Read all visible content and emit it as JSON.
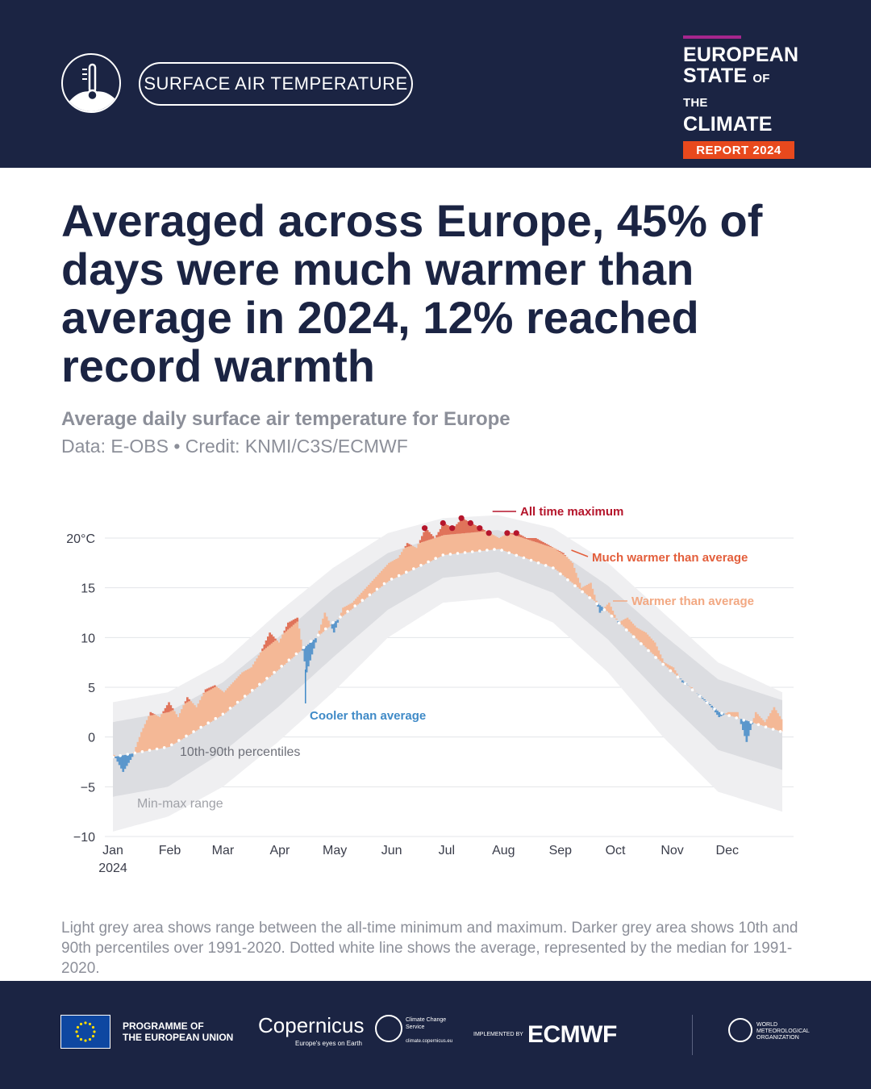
{
  "header": {
    "topic": "SURFACE AIR TEMPERATURE",
    "report_line1": "EUROPEAN",
    "report_line2a": "STATE",
    "report_line2b": "OF THE",
    "report_line3": "CLIMATE",
    "report_badge": "REPORT 2024"
  },
  "headline": "Averaged across Europe, 45% of days were much warmer than average in 2024, 12% reached record warmth",
  "subtitle": "Average daily surface air temperature for Europe",
  "credit": "Data: E-OBS • Credit: KNMI/C3S/ECMWF",
  "chart_data": {
    "type": "area",
    "title": "Average daily surface air temperature for Europe",
    "ylabel": "°C",
    "xlabel": "",
    "ylim": [
      -10,
      22
    ],
    "yticks": [
      {
        "value": 20,
        "label": "20°C"
      },
      {
        "value": 15,
        "label": "15"
      },
      {
        "value": 10,
        "label": "10"
      },
      {
        "value": 5,
        "label": "5"
      },
      {
        "value": 0,
        "label": "0"
      },
      {
        "value": -5,
        "label": "−5"
      },
      {
        "value": -10,
        "label": "−10"
      }
    ],
    "months": [
      "Jan",
      "Feb",
      "Mar",
      "Apr",
      "May",
      "Jun",
      "Jul",
      "Aug",
      "Sep",
      "Oct",
      "Nov",
      "Dec"
    ],
    "year_label": "2024",
    "series": [
      {
        "name": "Average (median 1991-2020)",
        "days": [
          0,
          30,
          60,
          90,
          120,
          150,
          180,
          210,
          240,
          270,
          300,
          330,
          365
        ],
        "values": [
          -2.0,
          -1.0,
          2.3,
          6.8,
          11.5,
          15.7,
          18.3,
          18.9,
          17.0,
          12.5,
          7.3,
          2.5,
          0.5
        ]
      },
      {
        "name": "10th percentile",
        "days": [
          0,
          30,
          60,
          90,
          120,
          150,
          180,
          210,
          240,
          270,
          300,
          330,
          365
        ],
        "values": [
          -6.0,
          -5.0,
          -1.5,
          3.0,
          8.0,
          12.8,
          16.0,
          16.6,
          14.5,
          9.8,
          4.0,
          -1.3,
          -3.3
        ]
      },
      {
        "name": "90th percentile",
        "days": [
          0,
          30,
          60,
          90,
          120,
          150,
          180,
          210,
          240,
          270,
          300,
          330,
          365
        ],
        "values": [
          1.5,
          2.5,
          5.5,
          10.0,
          14.8,
          18.5,
          20.3,
          20.8,
          19.0,
          15.2,
          10.3,
          5.8,
          3.7
        ]
      },
      {
        "name": "All-time minimum",
        "days": [
          0,
          30,
          60,
          90,
          120,
          150,
          180,
          210,
          240,
          270,
          300,
          330,
          365
        ],
        "values": [
          -9.5,
          -8.0,
          -5.0,
          -0.5,
          4.5,
          10.0,
          13.5,
          14.0,
          11.5,
          6.5,
          0.0,
          -5.5,
          -7.5
        ]
      },
      {
        "name": "All-time maximum",
        "days": [
          0,
          30,
          60,
          90,
          120,
          150,
          180,
          210,
          240,
          270,
          300,
          330,
          365
        ],
        "values": [
          3.5,
          4.5,
          7.5,
          12.5,
          17.0,
          20.5,
          22.0,
          22.3,
          21.0,
          17.5,
          12.5,
          7.5,
          4.5
        ]
      },
      {
        "name": "2024",
        "days": [
          0,
          5,
          10,
          15,
          20,
          25,
          30,
          35,
          40,
          45,
          50,
          55,
          60,
          65,
          70,
          75,
          80,
          85,
          90,
          95,
          100,
          105,
          110,
          115,
          120,
          125,
          130,
          135,
          140,
          145,
          150,
          155,
          160,
          165,
          170,
          175,
          180,
          185,
          190,
          195,
          200,
          205,
          210,
          215,
          220,
          225,
          230,
          235,
          240,
          245,
          250,
          255,
          260,
          265,
          270,
          275,
          280,
          285,
          290,
          295,
          300,
          305,
          310,
          315,
          320,
          325,
          330,
          335,
          340,
          345,
          350,
          355,
          360,
          365
        ],
        "values": [
          -1.8,
          -3.5,
          -2.0,
          0.5,
          2.5,
          2.0,
          3.5,
          2.0,
          4.0,
          3.0,
          4.8,
          5.2,
          4.5,
          5.5,
          6.5,
          7.0,
          8.5,
          10.5,
          9.5,
          11.5,
          12.0,
          6.5,
          9.5,
          12.5,
          10.5,
          13.0,
          13.5,
          14.5,
          15.5,
          16.5,
          17.5,
          18.0,
          19.5,
          19.0,
          21.0,
          20.0,
          21.5,
          21.0,
          22.0,
          21.5,
          21.0,
          20.5,
          20.0,
          20.5,
          20.5,
          20.0,
          20.0,
          19.5,
          19.0,
          18.5,
          17.5,
          15.0,
          15.5,
          12.5,
          13.5,
          11.5,
          12.0,
          11.0,
          10.5,
          9.5,
          7.5,
          7.0,
          5.5,
          5.0,
          4.0,
          3.2,
          2.0,
          2.5,
          2.5,
          -0.5,
          2.5,
          1.5,
          3.0,
          1.5
        ]
      }
    ],
    "annotations": [
      {
        "label": "All time maximum",
        "color": "#b5152b"
      },
      {
        "label": "Much warmer than average",
        "color": "#e35e3b"
      },
      {
        "label": "Warmer than average",
        "color": "#f2a882"
      },
      {
        "label": "Cooler than average",
        "color": "#3f8ac7"
      },
      {
        "label": "10th-90th percentiles",
        "color": "#6e7079"
      },
      {
        "label": "Min-max range",
        "color": "#a0a2a8"
      }
    ]
  },
  "footnote": "Light grey area shows range between the all-time minimum and maximum. Darker grey area shows 10th and 90th percentiles over 1991-2020. Dotted white line shows the average, represented by the median for 1991-2020.",
  "footer": {
    "eu_text_1": "PROGRAMME OF",
    "eu_text_2": "THE EUROPEAN UNION",
    "copernicus": "Copernicus",
    "copernicus_tag": "Europe's eyes on Earth",
    "c3s_name": "Climate Change Service",
    "c3s_url": "climate.copernicus.eu",
    "implemented_by": "IMPLEMENTED BY",
    "ecmwf": "ECMWF",
    "wmo_1": "WORLD",
    "wmo_2": "METEOROLOGICAL",
    "wmo_3": "ORGANIZATION"
  }
}
